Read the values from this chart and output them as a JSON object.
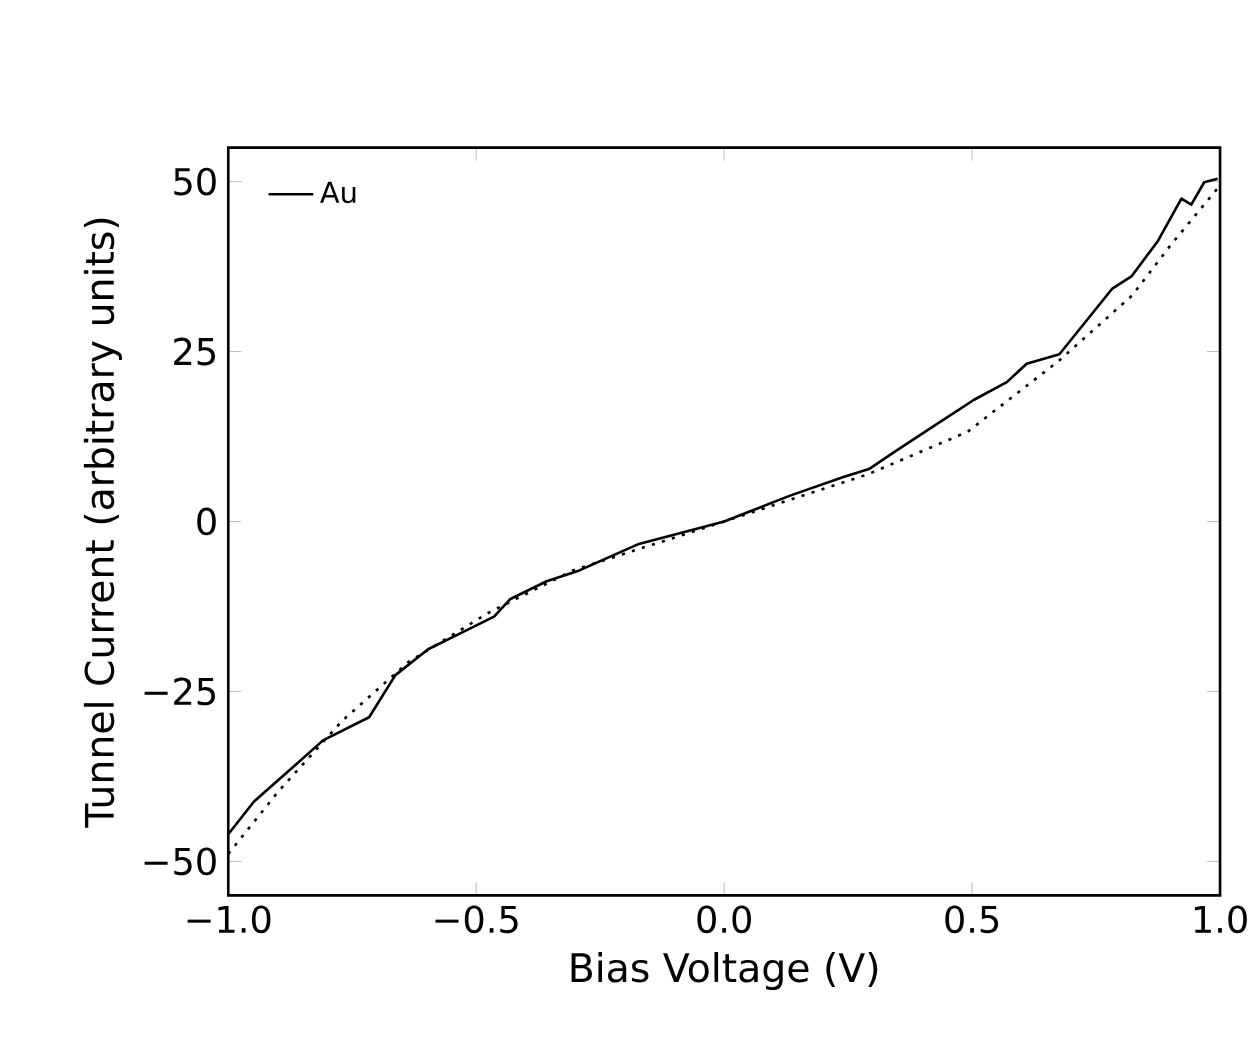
{
  "chart_data": {
    "type": "line",
    "xlabel": "Bias Voltage (V)",
    "ylabel": "Tunnel Current (arbitrary units)",
    "xlim": [
      -1.0,
      1.0
    ],
    "ylim": [
      -55,
      55
    ],
    "xticks": [
      {
        "value": -1.0,
        "label": "−1.0"
      },
      {
        "value": -0.5,
        "label": "−0.5"
      },
      {
        "value": 0.0,
        "label": "0.0"
      },
      {
        "value": 0.5,
        "label": "0.5"
      },
      {
        "value": 1.0,
        "label": "1.0"
      }
    ],
    "yticks": [
      {
        "value": -50,
        "label": "−50"
      },
      {
        "value": -25,
        "label": "−25"
      },
      0,
      25,
      50
    ],
    "grid": false,
    "legend": "top left",
    "marker": "none",
    "series": [
      {
        "name": "Au",
        "color": "#000000",
        "line_style": "solid",
        "x": [
          -1.0,
          -0.948,
          -0.875,
          -0.809,
          -0.716,
          -0.663,
          -0.597,
          -0.517,
          -0.464,
          -0.431,
          -0.358,
          -0.292,
          -0.172,
          0.0,
          0.133,
          0.239,
          0.292,
          0.345,
          0.424,
          0.504,
          0.57,
          0.61,
          0.676,
          0.729,
          0.782,
          0.822,
          0.875,
          0.922,
          0.942,
          0.968,
          0.995
        ],
        "values": [
          -46,
          -41.2,
          -36.5,
          -32.2,
          -28.8,
          -22.6,
          -18.8,
          -15.9,
          -14.0,
          -11.4,
          -8.8,
          -7.2,
          -3.3,
          0,
          3.8,
          6.5,
          7.7,
          10.3,
          14.1,
          17.9,
          20.5,
          23.2,
          24.6,
          29.4,
          34.2,
          36.1,
          41.3,
          47.5,
          46.6,
          49.9,
          50.4
        ]
      },
      {
        "color": "#000000",
        "line_style": "dotted",
        "x": [
          -1.0,
          -0.9,
          -0.77,
          -0.637,
          -0.477,
          -0.305,
          0.0,
          0.292,
          0.491,
          0.676,
          0.822,
          0.902,
          0.995
        ],
        "values": [
          -48.9,
          -39.8,
          -29.3,
          -20.7,
          -13.5,
          -7.2,
          0,
          7.0,
          13.2,
          23.7,
          33.2,
          40.8,
          49.0
        ]
      }
    ]
  }
}
